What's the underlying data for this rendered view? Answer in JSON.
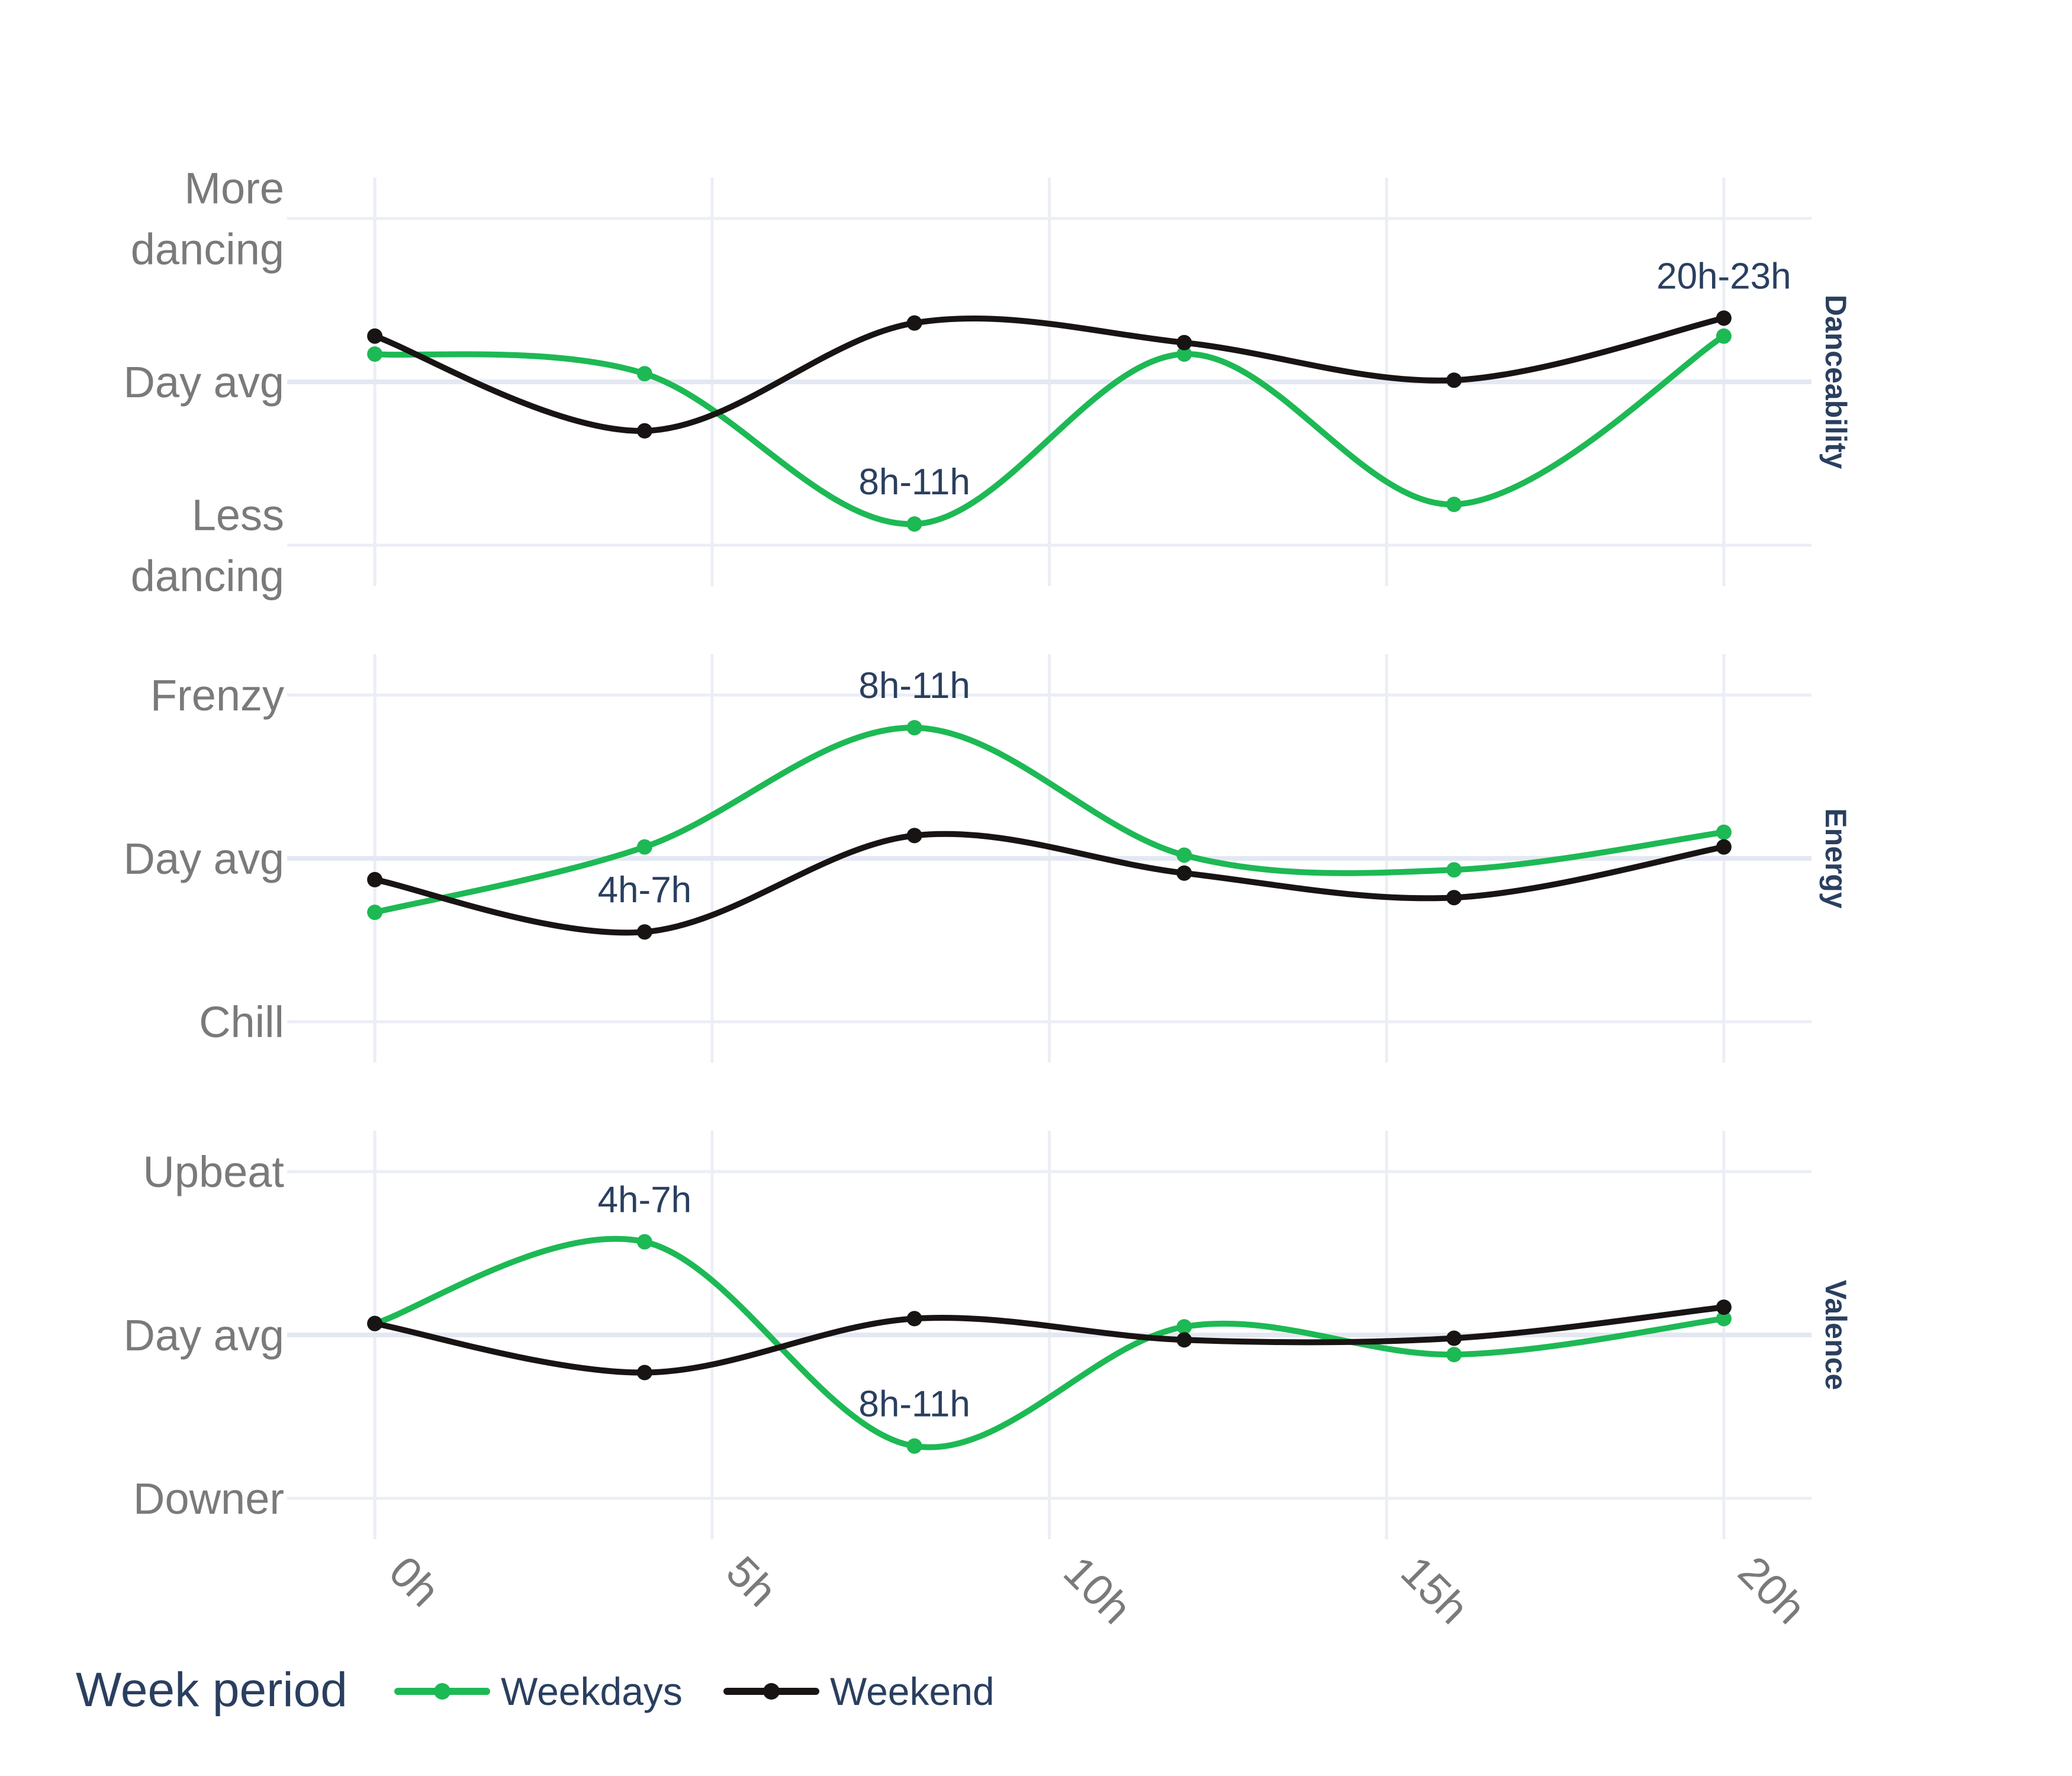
{
  "colors": {
    "weekdays": "#1DB954",
    "weekend": "#191414",
    "grid": "#ebeef5",
    "zeroline": "#e4e8f2",
    "tick_text": "#7a7a7a",
    "title_text": "#2a3f5f"
  },
  "legend": {
    "title": "Week period",
    "position": "bottom-left",
    "items": [
      "Weekdays",
      "Weekend"
    ]
  },
  "chart_data": {
    "type": "line",
    "shape": "spline",
    "x": [
      0,
      4,
      8,
      12,
      16,
      20
    ],
    "x_ticks": [
      0,
      5,
      10,
      15,
      20
    ],
    "x_tick_labels": [
      "0h",
      "5h",
      "10h",
      "15h",
      "20h"
    ],
    "xlim": [
      -1.3,
      21.3
    ],
    "grid": true,
    "facets": [
      {
        "name": "Danceability",
        "ylim": [
          -1.25,
          1.25
        ],
        "y_ticks": [
          {
            "value": 1,
            "lines": [
              "More",
              "dancing"
            ]
          },
          {
            "value": 0,
            "lines": [
              "Day avg"
            ]
          },
          {
            "value": -1,
            "lines": [
              "Less",
              "dancing"
            ]
          }
        ],
        "series": [
          {
            "name": "Weekdays",
            "values": [
              0.17,
              0.05,
              -0.87,
              0.17,
              -0.75,
              0.28
            ]
          },
          {
            "name": "Weekend",
            "values": [
              0.28,
              -0.3,
              0.36,
              0.24,
              0.01,
              0.39
            ]
          }
        ],
        "annotations": [
          {
            "text": "8h-11h",
            "x": 8,
            "series": "Weekdays"
          },
          {
            "text": "20h-23h",
            "x": 20,
            "series": "Weekend"
          }
        ]
      },
      {
        "name": "Energy",
        "ylim": [
          -1.25,
          1.25
        ],
        "y_ticks": [
          {
            "value": 1,
            "lines": [
              "Frenzy"
            ]
          },
          {
            "value": 0,
            "lines": [
              "Day avg"
            ]
          },
          {
            "value": -1,
            "lines": [
              "Chill"
            ]
          }
        ],
        "series": [
          {
            "name": "Weekdays",
            "values": [
              -0.33,
              0.07,
              0.8,
              0.02,
              -0.07,
              0.16
            ]
          },
          {
            "name": "Weekend",
            "values": [
              -0.13,
              -0.45,
              0.14,
              -0.09,
              -0.24,
              0.07
            ]
          }
        ],
        "annotations": [
          {
            "text": "8h-11h",
            "x": 8,
            "series": "Weekdays"
          },
          {
            "text": "4h-7h",
            "x": 4,
            "series": "Weekend"
          }
        ]
      },
      {
        "name": "Valence",
        "ylim": [
          -1.25,
          1.25
        ],
        "y_ticks": [
          {
            "value": 1,
            "lines": [
              "Upbeat"
            ]
          },
          {
            "value": 0,
            "lines": [
              "Day avg"
            ]
          },
          {
            "value": -1,
            "lines": [
              "Downer"
            ]
          }
        ],
        "series": [
          {
            "name": "Weekdays",
            "values": [
              0.07,
              0.57,
              -0.68,
              0.05,
              -0.12,
              0.1
            ]
          },
          {
            "name": "Weekend",
            "values": [
              0.07,
              -0.23,
              0.1,
              -0.03,
              -0.02,
              0.17
            ]
          }
        ],
        "annotations": [
          {
            "text": "4h-7h",
            "x": 4,
            "series": "Weekdays"
          },
          {
            "text": "8h-11h",
            "x": 8,
            "series": "Weekdays"
          }
        ]
      }
    ]
  }
}
